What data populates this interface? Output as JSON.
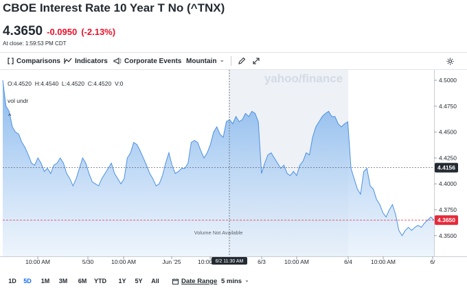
{
  "quote": {
    "title": "CBOE Interest Rate 10 Year T No (^TNX)",
    "price": "4.3650",
    "change": "-0.0950",
    "change_pct": "(-2.13%)",
    "close_time": "At close: 1:59:53 PM CDT"
  },
  "toolbar": {
    "comparisons": "Comparisons",
    "indicators": "Indicators",
    "corporate_events": "Corporate Events",
    "chart_style": "Mountain",
    "chart_style_chevron": "⌄",
    "comparisons_icon": "bracket-icon",
    "indicators_icon": "indicators-icon",
    "events_icon": "megaphone-icon",
    "draw_icon": "pencil-icon",
    "expand_icon": "expand-icon",
    "settings_icon": "gear-icon"
  },
  "chart": {
    "watermark": "yahoo/finance",
    "ohlc": "O:4.4520  H:4.4540  L:4.4520  C:4.4520  V:0",
    "vol_label": "vol undr",
    "collapse_icon": "^",
    "volume_note": "Volume Not Available",
    "crosshair_time": "6/2 11:30 AM",
    "crosshair_value": "4.4156",
    "last_value": "4.3650",
    "colors": {
      "line": "#4a90e2",
      "last_price": "#e52a3a",
      "crosshair_label": "#232a31"
    }
  },
  "chart_data": {
    "type": "area",
    "ylim": [
      4.33,
      4.51
    ],
    "y_ticks": [
      "4.5000",
      "4.4750",
      "4.4500",
      "4.4250",
      "4.4000",
      "4.3750",
      "4.3500"
    ],
    "x_ticks": [
      "10:00 AM",
      "5/30",
      "10:00 AM",
      "Jun '25",
      "10:00 AM",
      "6/3",
      "10:00 AM",
      "6/4",
      "10:00 AM",
      "6/"
    ],
    "values": [
      4.5,
      4.475,
      4.47,
      4.455,
      4.45,
      4.448,
      4.44,
      4.435,
      4.428,
      4.42,
      4.418,
      4.425,
      4.42,
      4.412,
      4.415,
      4.41,
      4.418,
      4.42,
      4.425,
      4.42,
      4.41,
      4.405,
      4.398,
      4.405,
      4.415,
      4.425,
      4.42,
      4.41,
      4.402,
      4.4,
      4.398,
      4.405,
      4.41,
      4.415,
      4.42,
      4.41,
      4.405,
      4.4,
      4.405,
      4.425,
      4.43,
      4.44,
      4.438,
      4.432,
      4.425,
      4.418,
      4.41,
      4.405,
      4.398,
      4.4,
      4.408,
      4.42,
      4.43,
      4.418,
      4.41,
      4.412,
      4.415,
      4.415,
      4.42,
      4.44,
      4.442,
      4.44,
      4.432,
      4.425,
      4.43,
      4.438,
      4.45,
      4.455,
      4.448,
      4.445,
      4.46,
      4.462,
      4.458,
      4.465,
      4.46,
      4.462,
      4.468,
      4.465,
      4.47,
      4.468,
      4.46,
      4.41,
      4.42,
      4.428,
      4.43,
      4.425,
      4.42,
      4.415,
      4.418,
      4.41,
      4.408,
      4.412,
      4.408,
      4.418,
      4.422,
      4.43,
      4.428,
      4.445,
      4.455,
      4.46,
      4.465,
      4.468,
      4.47,
      4.465,
      4.465,
      4.458,
      4.455,
      4.458,
      4.46,
      4.415,
      4.405,
      4.395,
      4.39,
      4.412,
      4.415,
      4.398,
      4.395,
      4.385,
      4.38,
      4.372,
      4.368,
      4.375,
      4.38,
      4.37,
      4.355,
      4.35,
      4.355,
      4.358,
      4.355,
      4.358,
      4.36,
      4.358,
      4.362,
      4.365,
      4.368,
      4.365
    ]
  },
  "ranges": {
    "buttons": [
      "1D",
      "5D",
      "1M",
      "3M",
      "6M",
      "YTD",
      "1Y",
      "5Y",
      "All"
    ],
    "active": "5D",
    "date_range": "Date Range",
    "interval": "5 mins",
    "interval_chevron": "⌄",
    "calendar_icon": "calendar-icon"
  }
}
